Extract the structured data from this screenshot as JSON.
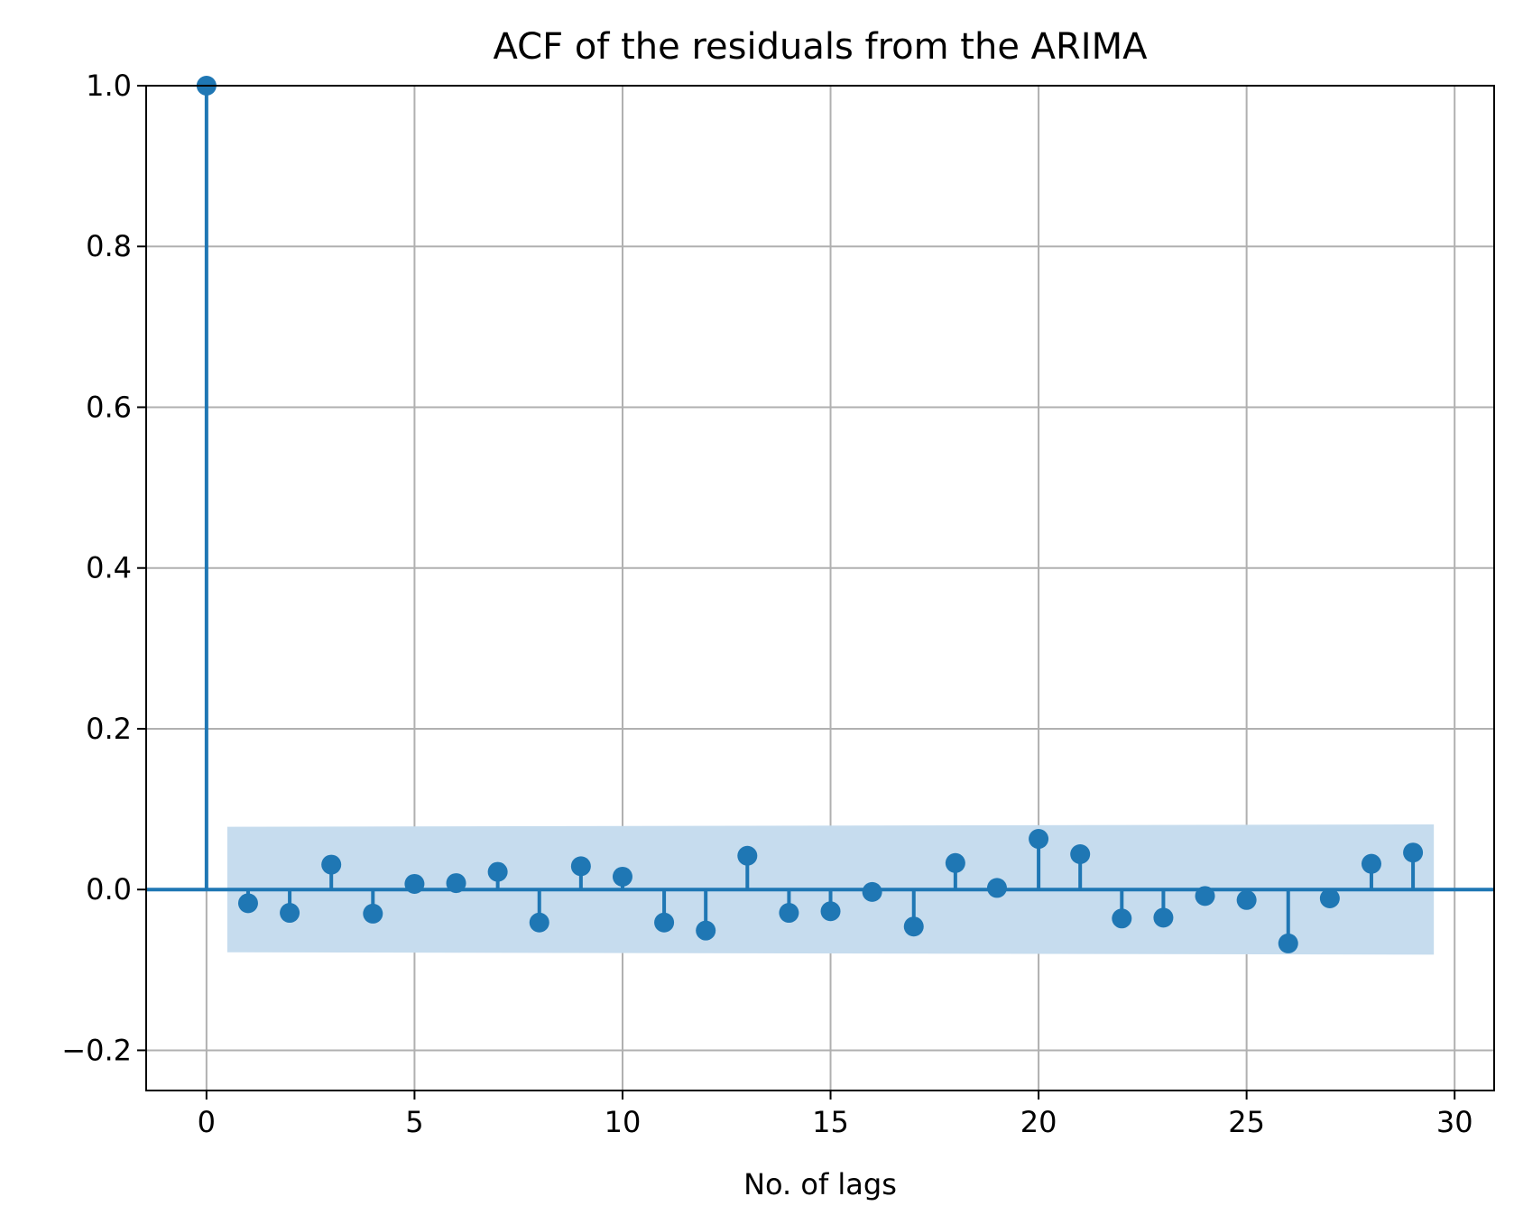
{
  "chart_data": {
    "type": "stem",
    "title": "ACF of the residuals from the ARIMA",
    "xlabel": "No. of lags",
    "ylabel": "",
    "xlim": [
      -1.45,
      30.95
    ],
    "ylim": [
      -0.25,
      1.0
    ],
    "xticks": [
      0,
      5,
      10,
      15,
      20,
      25,
      30
    ],
    "xtick_labels": [
      "0",
      "5",
      "10",
      "15",
      "20",
      "25",
      "30"
    ],
    "yticks": [
      -0.2,
      0.0,
      0.2,
      0.4,
      0.6,
      0.8,
      1.0
    ],
    "ytick_labels": [
      "−0.2",
      "0.0",
      "0.2",
      "0.4",
      "0.6",
      "0.8",
      "1.0"
    ],
    "grid": true,
    "color": "#1f77b4",
    "band_color": "#c6dcee",
    "series": [
      {
        "lags": [
          0,
          1,
          2,
          3,
          4,
          5,
          6,
          7,
          8,
          9,
          10,
          11,
          12,
          13,
          14,
          15,
          16,
          17,
          18,
          19,
          20,
          21,
          22,
          23,
          24,
          25,
          26,
          27,
          28,
          29
        ],
        "values": [
          1.0,
          -0.017,
          -0.029,
          0.031,
          -0.03,
          0.007,
          0.008,
          0.022,
          -0.041,
          0.029,
          0.016,
          -0.041,
          -0.051,
          0.042,
          -0.029,
          -0.027,
          -0.003,
          -0.046,
          0.033,
          0.002,
          0.063,
          0.044,
          -0.036,
          -0.035,
          -0.008,
          -0.013,
          -0.067,
          -0.011,
          0.032,
          0.046
        ]
      }
    ],
    "confidence_band": {
      "x_start": 0.5,
      "x_end": 29.5,
      "upper": [
        0.078,
        0.081
      ],
      "lower": [
        -0.078,
        -0.081
      ]
    }
  }
}
